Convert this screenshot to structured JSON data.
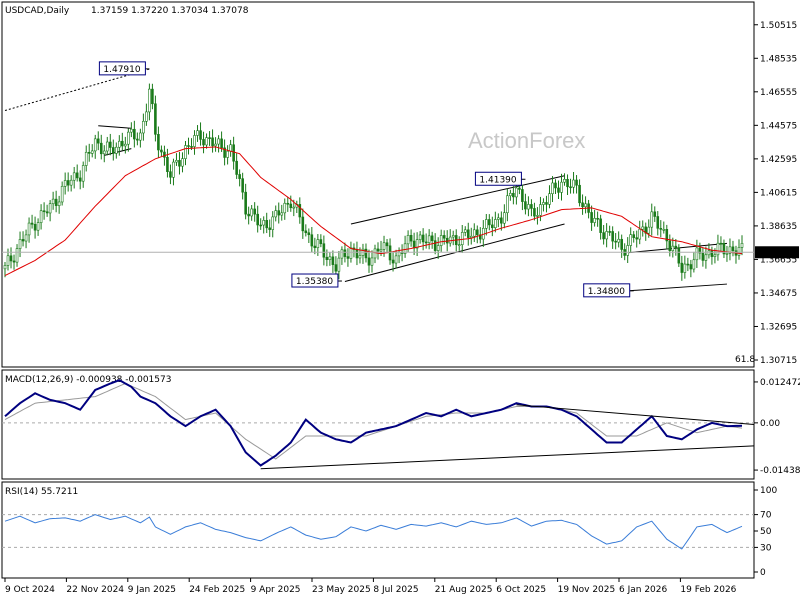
{
  "header": {
    "symbol": "USDCAD,Daily",
    "ohlc": "1.37159 1.37220 1.37034 1.37078"
  },
  "watermark": "ActionForex",
  "colors": {
    "candle": "#1a7a1a",
    "ma": "#e00000",
    "macd": "#000080",
    "signal": "#9a9a9a",
    "rsi": "#3a7dd8",
    "trend": "#000000",
    "grid": "#c8c8c8",
    "price_tag_bg": "#000000",
    "price_tag_fg": "#ffffff"
  },
  "chart_data": [
    {
      "type": "candlestick",
      "panel": "price",
      "x_labels": [
        "9 Oct 2024",
        "22 Nov 2024",
        "9 Jan 2025",
        "24 Feb 2025",
        "9 Apr 2025",
        "23 May 2025",
        "8 Jul 2025",
        "21 Aug 2025",
        "6 Oct 2025",
        "19 Nov 2025",
        "6 Jan 2026",
        "19 Feb 2026"
      ],
      "y_ticks": [
        "1.50515",
        "1.48535",
        "1.46555",
        "1.44575",
        "1.42595",
        "1.40615",
        "1.38635",
        "1.36655",
        "1.34675",
        "1.32695",
        "1.30715"
      ],
      "ylim": [
        1.30715,
        1.51505
      ],
      "last_price": "1.37078",
      "fib_label": "61.8",
      "annotations": [
        {
          "label": "1.47910",
          "value": 1.4791
        },
        {
          "label": "1.41390",
          "value": 1.4139
        },
        {
          "label": "1.35380",
          "value": 1.3538
        },
        {
          "label": "1.34800",
          "value": 1.348
        }
      ],
      "close_path": [
        [
          0,
          1.361
        ],
        [
          5,
          1.376
        ],
        [
          10,
          1.389
        ],
        [
          15,
          1.397
        ],
        [
          20,
          1.41
        ],
        [
          25,
          1.418
        ],
        [
          30,
          1.436
        ],
        [
          35,
          1.43
        ],
        [
          40,
          1.438
        ],
        [
          45,
          1.44
        ],
        [
          48,
          1.466
        ],
        [
          50,
          1.44
        ],
        [
          55,
          1.416
        ],
        [
          60,
          1.432
        ],
        [
          65,
          1.44
        ],
        [
          70,
          1.434
        ],
        [
          75,
          1.431
        ],
        [
          80,
          1.398
        ],
        [
          85,
          1.386
        ],
        [
          90,
          1.391
        ],
        [
          95,
          1.402
        ],
        [
          100,
          1.382
        ],
        [
          105,
          1.372
        ],
        [
          110,
          1.363
        ],
        [
          115,
          1.373
        ],
        [
          120,
          1.366
        ],
        [
          125,
          1.374
        ],
        [
          130,
          1.367
        ],
        [
          135,
          1.379
        ],
        [
          140,
          1.377
        ],
        [
          145,
          1.377
        ],
        [
          150,
          1.379
        ],
        [
          155,
          1.381
        ],
        [
          160,
          1.385
        ],
        [
          165,
          1.392
        ],
        [
          170,
          1.41
        ],
        [
          175,
          1.392
        ],
        [
          180,
          1.402
        ],
        [
          185,
          1.413
        ],
        [
          190,
          1.408
        ],
        [
          195,
          1.39
        ],
        [
          200,
          1.382
        ],
        [
          205,
          1.373
        ],
        [
          210,
          1.38
        ],
        [
          215,
          1.391
        ],
        [
          220,
          1.38
        ],
        [
          225,
          1.361
        ],
        [
          230,
          1.368
        ],
        [
          235,
          1.371
        ],
        [
          240,
          1.373
        ],
        [
          245,
          1.371
        ]
      ],
      "ma_path": [
        [
          0,
          1.357
        ],
        [
          10,
          1.366
        ],
        [
          20,
          1.378
        ],
        [
          30,
          1.398
        ],
        [
          40,
          1.416
        ],
        [
          50,
          1.426
        ],
        [
          60,
          1.432
        ],
        [
          70,
          1.433
        ],
        [
          78,
          1.429
        ],
        [
          85,
          1.415
        ],
        [
          95,
          1.402
        ],
        [
          105,
          1.386
        ],
        [
          115,
          1.373
        ],
        [
          125,
          1.37
        ],
        [
          135,
          1.373
        ],
        [
          145,
          1.377
        ],
        [
          155,
          1.379
        ],
        [
          165,
          1.385
        ],
        [
          175,
          1.39
        ],
        [
          185,
          1.396
        ],
        [
          195,
          1.397
        ],
        [
          205,
          1.392
        ],
        [
          215,
          1.38
        ],
        [
          225,
          1.377
        ],
        [
          235,
          1.372
        ],
        [
          245,
          1.37
        ]
      ]
    },
    {
      "type": "line",
      "panel": "macd",
      "title": "MACD(12,26,9) -0.000938 -0.001573",
      "y_ticks": [
        "0.012472",
        "0.00",
        "-0.014389"
      ],
      "ylim": [
        -0.0165,
        0.0155
      ],
      "series": [
        {
          "name": "MACD",
          "points": [
            [
              0,
              0.002
            ],
            [
              5,
              0.006
            ],
            [
              10,
              0.009
            ],
            [
              15,
              0.007
            ],
            [
              20,
              0.006
            ],
            [
              25,
              0.004
            ],
            [
              30,
              0.01
            ],
            [
              35,
              0.012
            ],
            [
              38,
              0.013
            ],
            [
              42,
              0.011
            ],
            [
              45,
              0.008
            ],
            [
              50,
              0.006
            ],
            [
              55,
              0.002
            ],
            [
              60,
              -0.001
            ],
            [
              65,
              0.002
            ],
            [
              70,
              0.004
            ],
            [
              75,
              -0.001
            ],
            [
              80,
              -0.009
            ],
            [
              85,
              -0.013
            ],
            [
              90,
              -0.01
            ],
            [
              95,
              -0.006
            ],
            [
              100,
              0.001
            ],
            [
              105,
              -0.003
            ],
            [
              110,
              -0.005
            ],
            [
              115,
              -0.006
            ],
            [
              120,
              -0.003
            ],
            [
              125,
              -0.002
            ],
            [
              130,
              -0.001
            ],
            [
              135,
              0.001
            ],
            [
              140,
              0.003
            ],
            [
              145,
              0.002
            ],
            [
              150,
              0.004
            ],
            [
              155,
              0.002
            ],
            [
              160,
              0.003
            ],
            [
              165,
              0.004
            ],
            [
              170,
              0.006
            ],
            [
              175,
              0.005
            ],
            [
              180,
              0.005
            ],
            [
              185,
              0.004
            ],
            [
              190,
              0.002
            ],
            [
              195,
              -0.002
            ],
            [
              200,
              -0.006
            ],
            [
              205,
              -0.006
            ],
            [
              210,
              -0.002
            ],
            [
              215,
              0.002
            ],
            [
              220,
              -0.004
            ],
            [
              225,
              -0.005
            ],
            [
              230,
              -0.002
            ],
            [
              235,
              0.0
            ],
            [
              240,
              -0.001
            ],
            [
              245,
              -0.0009
            ]
          ]
        },
        {
          "name": "Signal",
          "points": [
            [
              0,
              0.001
            ],
            [
              10,
              0.006
            ],
            [
              20,
              0.007
            ],
            [
              30,
              0.008
            ],
            [
              40,
              0.012
            ],
            [
              50,
              0.008
            ],
            [
              60,
              0.001
            ],
            [
              70,
              0.003
            ],
            [
              80,
              -0.005
            ],
            [
              90,
              -0.011
            ],
            [
              100,
              -0.004
            ],
            [
              110,
              -0.004
            ],
            [
              120,
              -0.004
            ],
            [
              130,
              -0.001
            ],
            [
              140,
              0.002
            ],
            [
              150,
              0.003
            ],
            [
              160,
              0.003
            ],
            [
              170,
              0.005
            ],
            [
              180,
              0.005
            ],
            [
              190,
              0.003
            ],
            [
              200,
              -0.004
            ],
            [
              210,
              -0.004
            ],
            [
              220,
              0.0
            ],
            [
              230,
              -0.003
            ],
            [
              240,
              -0.001
            ],
            [
              245,
              -0.0016
            ]
          ]
        }
      ]
    },
    {
      "type": "line",
      "panel": "rsi",
      "title": "RSI(14) 55.7211",
      "y_ticks": [
        "100",
        "70",
        "50",
        "30",
        "0"
      ],
      "ylim": [
        0,
        100
      ],
      "series": [
        {
          "name": "RSI",
          "points": [
            [
              0,
              62
            ],
            [
              5,
              68
            ],
            [
              10,
              60
            ],
            [
              15,
              65
            ],
            [
              20,
              66
            ],
            [
              25,
              62
            ],
            [
              30,
              70
            ],
            [
              35,
              64
            ],
            [
              40,
              68
            ],
            [
              45,
              60
            ],
            [
              48,
              67
            ],
            [
              50,
              55
            ],
            [
              55,
              46
            ],
            [
              60,
              55
            ],
            [
              65,
              60
            ],
            [
              70,
              52
            ],
            [
              75,
              48
            ],
            [
              80,
              42
            ],
            [
              85,
              38
            ],
            [
              90,
              47
            ],
            [
              95,
              55
            ],
            [
              100,
              45
            ],
            [
              105,
              40
            ],
            [
              110,
              43
            ],
            [
              115,
              55
            ],
            [
              120,
              50
            ],
            [
              125,
              57
            ],
            [
              130,
              52
            ],
            [
              135,
              58
            ],
            [
              140,
              56
            ],
            [
              145,
              60
            ],
            [
              150,
              55
            ],
            [
              155,
              62
            ],
            [
              160,
              58
            ],
            [
              165,
              60
            ],
            [
              170,
              66
            ],
            [
              175,
              56
            ],
            [
              180,
              62
            ],
            [
              185,
              63
            ],
            [
              190,
              58
            ],
            [
              195,
              44
            ],
            [
              200,
              34
            ],
            [
              205,
              38
            ],
            [
              210,
              55
            ],
            [
              215,
              62
            ],
            [
              220,
              40
            ],
            [
              225,
              28
            ],
            [
              230,
              55
            ],
            [
              235,
              58
            ],
            [
              240,
              48
            ],
            [
              245,
              55.7
            ]
          ]
        }
      ]
    }
  ]
}
